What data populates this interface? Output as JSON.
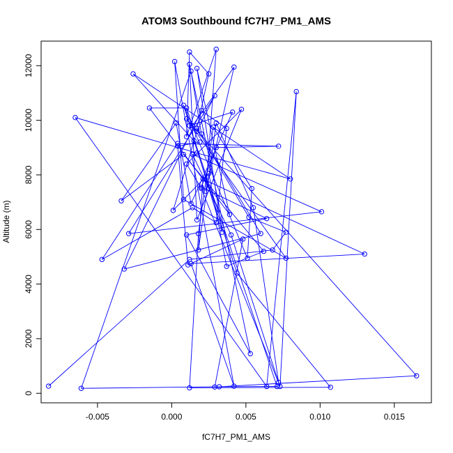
{
  "chart_data": {
    "type": "scatter",
    "title": "ATOM3 Southbound fC7H7_PM1_AMS",
    "xlabel": "fC7H7_PM1_AMS",
    "ylabel": "Altitude (m)",
    "xlim": [
      -0.0088,
      0.0175
    ],
    "ylim": [
      -350,
      12900
    ],
    "x_ticks": [
      -0.005,
      0.0,
      0.005,
      0.01,
      0.015
    ],
    "x_tick_labels": [
      "-0.005",
      "0.000",
      "0.005",
      "0.010",
      "0.015"
    ],
    "y_ticks": [
      0,
      2000,
      4000,
      6000,
      8000,
      10000,
      12000
    ],
    "y_tick_labels": [
      "0",
      "2000",
      "4000",
      "6000",
      "8000",
      "10000",
      "12000"
    ],
    "grid": false,
    "connect_points": true,
    "series_color": "#0000ff",
    "series": [
      {
        "points": [
          [
            -0.0083,
            260
          ],
          [
            0.0012,
            4900
          ],
          [
            0.0068,
            5250
          ],
          [
            0.0077,
            5900
          ],
          [
            0.0052,
            6450
          ],
          [
            0.0017,
            9700
          ],
          [
            0.0025,
            11700
          ],
          [
            0.0012,
            12500
          ],
          [
            0.001,
            9400
          ],
          [
            0.003,
            12600
          ],
          [
            0.0023,
            7400
          ],
          [
            0.0042,
            11950
          ],
          [
            0.0014,
            9800
          ],
          [
            0.001,
            10450
          ],
          [
            -0.0015,
            10450
          ],
          [
            0.0039,
            6550
          ],
          [
            0.0017,
            11900
          ],
          [
            0.0034,
            5900
          ],
          [
            0.0008,
            10550
          ],
          [
            0.0051,
            4950
          ],
          [
            0.0054,
            7500
          ],
          [
            0.0028,
            9750
          ],
          [
            0.0018,
            5850
          ],
          [
            0.0012,
            200
          ],
          [
            0.0107,
            220
          ],
          [
            0.0044,
            4400
          ],
          [
            0.0015,
            9250
          ],
          [
            -0.0026,
            11700
          ],
          [
            0.008,
            7850
          ],
          [
            0.0017,
            8800
          ],
          [
            -0.0065,
            10100
          ],
          [
            0.0064,
            250
          ],
          [
            0.0084,
            11050
          ],
          [
            0.0073,
            250
          ],
          [
            0.002,
            7500
          ],
          [
            0.001,
            8400
          ],
          [
            0.0047,
            10400
          ],
          [
            0.0017,
            6350
          ],
          [
            0.0012,
            12050
          ],
          [
            0.0053,
            1450
          ],
          [
            0.001,
            5800
          ],
          [
            0.0064,
            6400
          ],
          [
            0.002,
            7550
          ],
          [
            0.003,
            9000
          ],
          [
            0.0072,
            9050
          ],
          [
            0.0004,
            9150
          ],
          [
            -0.0047,
            4900
          ],
          [
            0.0014,
            6800
          ],
          [
            0.003,
            6250
          ],
          [
            0.0037,
            9700
          ],
          [
            0.002,
            10350
          ],
          [
            -0.0032,
            4550
          ],
          [
            0.006,
            5850
          ],
          [
            0.002,
            9500
          ],
          [
            0.0013,
            11800
          ],
          [
            -0.0061,
            180
          ],
          [
            0.0032,
            240
          ],
          [
            0.0071,
            250
          ],
          [
            0.0012,
            9800
          ],
          [
            0.0041,
            10300
          ],
          [
            0.0013,
            6950
          ],
          [
            0.0003,
            9900
          ],
          [
            -0.0034,
            7050
          ],
          [
            0.0008,
            8750
          ],
          [
            0.0062,
            5200
          ],
          [
            0.0037,
            4650
          ],
          [
            0.0025,
            8050
          ],
          [
            0.0001,
            6700
          ],
          [
            0.0017,
            9600
          ],
          [
            0.0029,
            10900
          ],
          [
            -0.0029,
            5850
          ],
          [
            0.0101,
            6650
          ],
          [
            0.0014,
            8750
          ],
          [
            0.004,
            5800
          ],
          [
            0.0072,
            400
          ],
          [
            0.0055,
            6800
          ],
          [
            0.003,
            9900
          ],
          [
            0.0018,
            5250
          ],
          [
            0.0021,
            7850
          ],
          [
            0.013,
            5100
          ],
          [
            0.0013,
            4750
          ],
          [
            0.0042,
            260
          ],
          [
            0.0002,
            12150
          ],
          [
            0.0008,
            7100
          ],
          [
            0.0077,
            4950
          ],
          [
            0.001,
            10050
          ],
          [
            0.0165,
            640
          ],
          [
            0.0029,
            230
          ],
          [
            0.0048,
            5650
          ],
          [
            0.0011,
            4700
          ],
          [
            0.0004,
            9050
          ],
          [
            0.0019,
            9200
          ]
        ]
      }
    ]
  }
}
